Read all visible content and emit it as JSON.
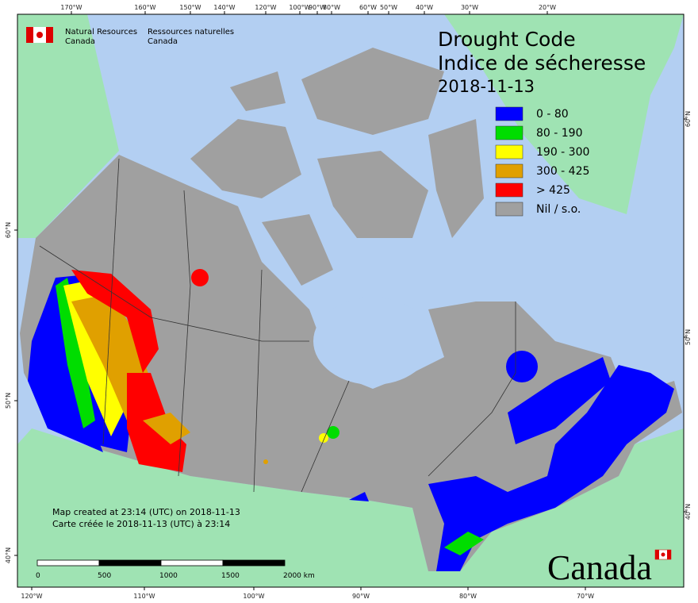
{
  "header": {
    "department_en": [
      "Natural Resources",
      "Canada"
    ],
    "department_fr": [
      "Ressources naturelles",
      "Canada"
    ]
  },
  "title": {
    "en": "Drought Code",
    "fr": "Indice de sécheresse",
    "date": "2018-11-13"
  },
  "legend": [
    {
      "label": "0 - 80",
      "color": "#0000ff"
    },
    {
      "label": "80 - 190",
      "color": "#00dd00"
    },
    {
      "label": "190 - 300",
      "color": "#ffff00"
    },
    {
      "label": "300 - 425",
      "color": "#e0a000"
    },
    {
      "label": "> 425",
      "color": "#ff0000"
    },
    {
      "label": "Nil / s.o.",
      "color": "#a0a0a0"
    }
  ],
  "note": [
    "Map created at 23:14 (UTC) on 2018-11-13",
    "Carte créée le 2018-11-13 (UTC) à 23:14"
  ],
  "scale_bar": [
    "0",
    "500",
    "1000",
    "1500",
    "2000 km"
  ],
  "graticule": {
    "top": [
      "170°W",
      "160°W",
      "150°W",
      "140°W",
      "120°W",
      "100°W",
      "90°W",
      "80°W",
      "60°W",
      "50°W",
      "40°W",
      "30°W",
      "20°W"
    ],
    "bottom": [
      "120°W",
      "110°W",
      "100°W",
      "90°W",
      "80°W",
      "70°W"
    ],
    "left": [
      "60°N",
      "50°N",
      "40°N"
    ],
    "right": [
      "60°N",
      "50°N",
      "40°N"
    ]
  },
  "wordmark": "Canada"
}
